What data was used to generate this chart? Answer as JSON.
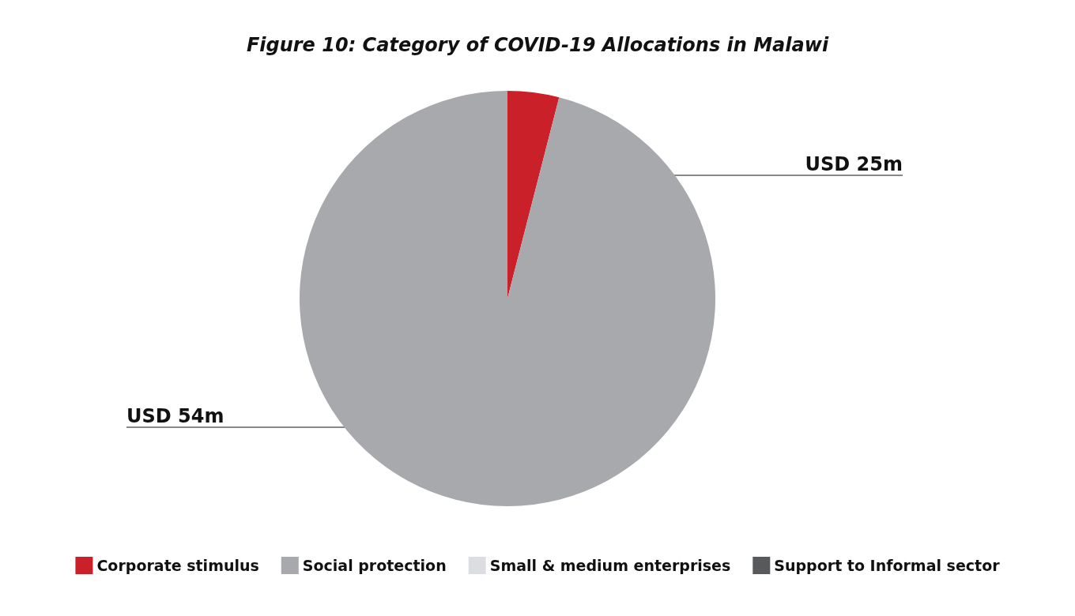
{
  "chart_data": {
    "type": "pie",
    "title": "Figure 10: Category of COVID-19 Allocations in Malawi",
    "categories": [
      "Corporate stimulus",
      "Social protection",
      "Small & medium enterprises",
      "Support to Informal sector"
    ],
    "values": [
      4,
      96,
      0,
      0
    ],
    "colors": [
      "#c9202a",
      "#a7a9ac",
      "#dcdde1",
      "#58595b"
    ],
    "value_labels": [
      "USD 25m",
      "USD 54m",
      null,
      null
    ],
    "legend": "bottom"
  }
}
